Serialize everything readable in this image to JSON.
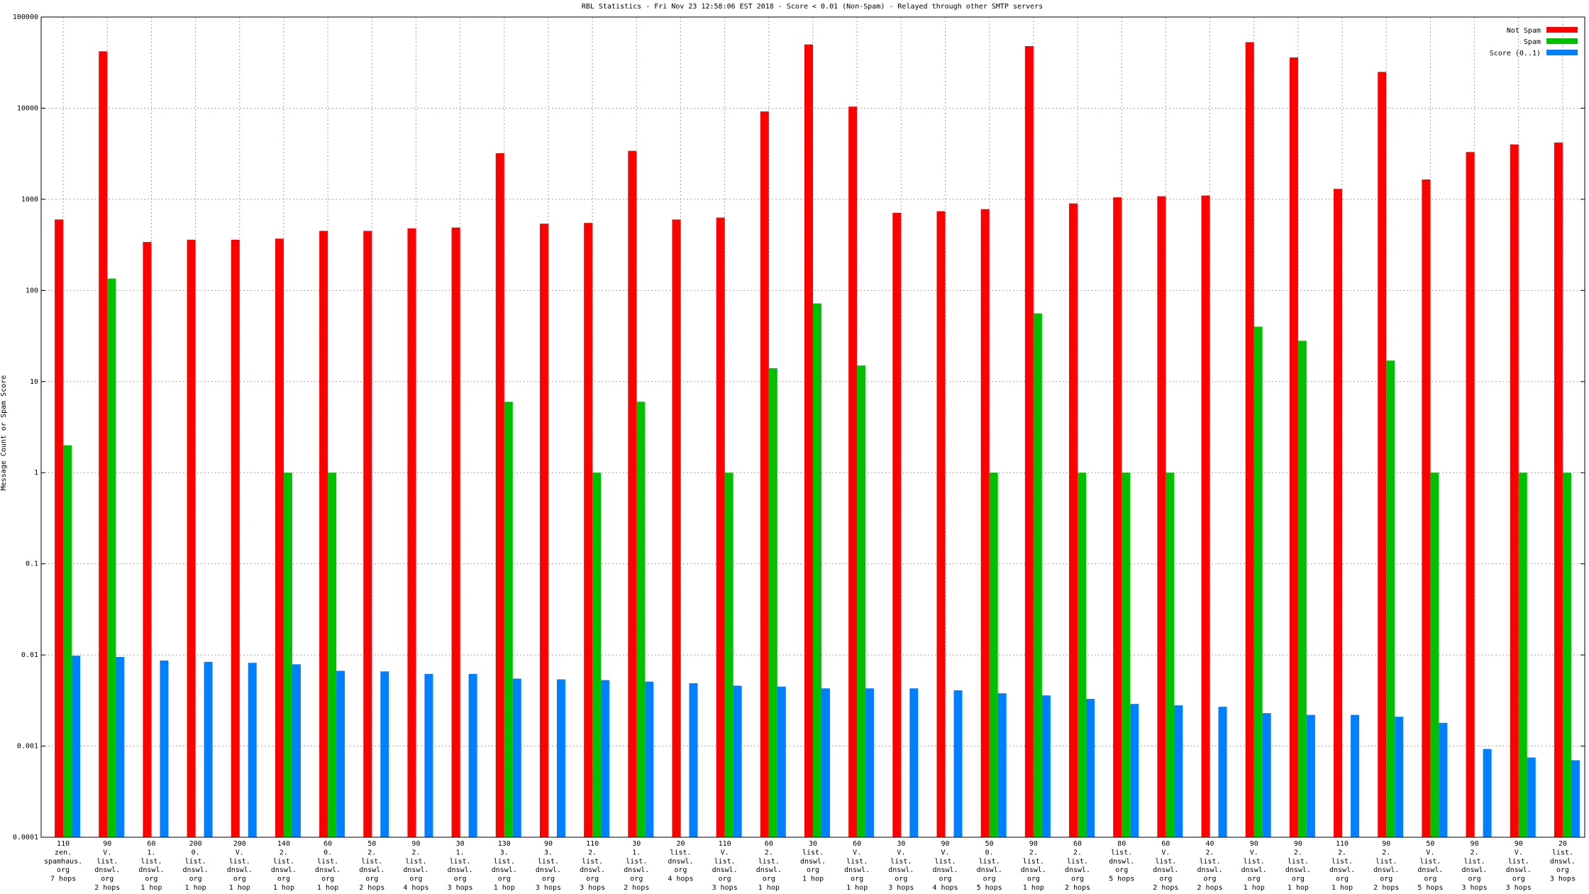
{
  "chart_data": {
    "type": "bar",
    "title": "RBL Statistics - Fri Nov 23 12:58:06 EST 2018 - Score < 0.01 (Non-Spam) - Relayed through other SMTP servers",
    "ylabel": "Message Count or Spam Score",
    "log_scale": true,
    "grid": true,
    "legend": "top-right",
    "categories": [
      [
        "110",
        "zen.",
        "spamhaus.",
        "org",
        "7 hops"
      ],
      [
        "90",
        "V.",
        "list.",
        "dnswl.",
        "org",
        "2 hops"
      ],
      [
        "60",
        "1.",
        "list.",
        "dnswl.",
        "org",
        "1 hop"
      ],
      [
        "200",
        "0.",
        "list.",
        "dnswl.",
        "org",
        "1 hop"
      ],
      [
        "200",
        "V.",
        "list.",
        "dnswl.",
        "org",
        "1 hop"
      ],
      [
        "140",
        "2.",
        "list.",
        "dnswl.",
        "org",
        "1 hop"
      ],
      [
        "60",
        "0.",
        "list.",
        "dnswl.",
        "org",
        "1 hop"
      ],
      [
        "50",
        "2.",
        "list.",
        "dnswl.",
        "org",
        "2 hops"
      ],
      [
        "90",
        "2.",
        "list.",
        "dnswl.",
        "org",
        "4 hops"
      ],
      [
        "30",
        "1.",
        "list.",
        "dnswl.",
        "org",
        "3 hops"
      ],
      [
        "130",
        "3.",
        "list.",
        "dnswl.",
        "org",
        "1 hop"
      ],
      [
        "90",
        "3.",
        "list.",
        "dnswl.",
        "org",
        "3 hops"
      ],
      [
        "110",
        "2.",
        "list.",
        "dnswl.",
        "org",
        "3 hops"
      ],
      [
        "30",
        "1.",
        "list.",
        "dnswl.",
        "org",
        "2 hops"
      ],
      [
        "20",
        "list.",
        "dnswl.",
        "org",
        "4 hops"
      ],
      [
        "110",
        "V.",
        "list.",
        "dnswl.",
        "org",
        "3 hops"
      ],
      [
        "60",
        "2.",
        "list.",
        "dnswl.",
        "org",
        "1 hop"
      ],
      [
        "30",
        "list.",
        "dnswl.",
        "org",
        "1 hop"
      ],
      [
        "60",
        "V.",
        "list.",
        "dnswl.",
        "org",
        "1 hop"
      ],
      [
        "30",
        "V.",
        "list.",
        "dnswl.",
        "org",
        "3 hops"
      ],
      [
        "90",
        "V.",
        "list.",
        "dnswl.",
        "org",
        "4 hops"
      ],
      [
        "50",
        "0.",
        "list.",
        "dnswl.",
        "org",
        "5 hops"
      ],
      [
        "90",
        "2.",
        "list.",
        "dnswl.",
        "org",
        "1 hop"
      ],
      [
        "60",
        "2.",
        "list.",
        "dnswl.",
        "org",
        "2 hops"
      ],
      [
        "80",
        "list.",
        "dnswl.",
        "org",
        "5 hops"
      ],
      [
        "60",
        "V.",
        "list.",
        "dnswl.",
        "org",
        "2 hops"
      ],
      [
        "40",
        "2.",
        "list.",
        "dnswl.",
        "org",
        "2 hops"
      ],
      [
        "90",
        "V.",
        "list.",
        "dnswl.",
        "org",
        "1 hop"
      ],
      [
        "90",
        "2.",
        "list.",
        "dnswl.",
        "org",
        "1 hop"
      ],
      [
        "110",
        "2.",
        "list.",
        "dnswl.",
        "org",
        "1 hop"
      ],
      [
        "90",
        "2.",
        "list.",
        "dnswl.",
        "org",
        "2 hops"
      ],
      [
        "50",
        "V.",
        "list.",
        "dnswl.",
        "org",
        "5 hops"
      ],
      [
        "90",
        "2.",
        "list.",
        "dnswl.",
        "org",
        "3 hops"
      ],
      [
        "90",
        "V.",
        "list.",
        "dnswl.",
        "org",
        "3 hops"
      ],
      [
        "20",
        "list.",
        "dnswl.",
        "org",
        "3 hops"
      ]
    ],
    "series": [
      {
        "name": "Not Spam",
        "color": "#ff0000",
        "values": [
          600,
          42000,
          340,
          360,
          360,
          370,
          450,
          450,
          480,
          490,
          3200,
          540,
          550,
          3400,
          600,
          630,
          9200,
          50000,
          10400,
          710,
          740,
          780,
          48000,
          900,
          1050,
          1080,
          1100,
          53000,
          36000,
          1300,
          25000,
          1650,
          3300,
          4000,
          4200
        ]
      },
      {
        "name": "Spam",
        "color": "#00c000",
        "values": [
          2,
          135,
          null,
          null,
          null,
          1,
          1,
          null,
          null,
          null,
          6,
          null,
          1,
          6,
          null,
          1,
          14,
          72,
          15,
          null,
          null,
          1,
          56,
          1,
          1,
          1,
          null,
          40,
          28,
          null,
          17,
          1,
          null,
          1,
          1
        ]
      },
      {
        "name": "Score (0..1)",
        "color": "#0080ff",
        "values": [
          0.0098,
          0.0095,
          0.0087,
          0.0084,
          0.0082,
          0.0079,
          0.0067,
          0.0066,
          0.0062,
          0.0062,
          0.0055,
          0.0054,
          0.0053,
          0.0051,
          0.0049,
          0.0046,
          0.0045,
          0.0043,
          0.0043,
          0.0043,
          0.0041,
          0.0038,
          0.0036,
          0.0033,
          0.0029,
          0.0028,
          0.0027,
          0.0023,
          0.0022,
          0.0022,
          0.0021,
          0.0018,
          0.00093,
          0.00075,
          0.0007
        ]
      }
    ],
    "ylim": [
      0.0001,
      100000
    ],
    "yticks": [
      0.0001,
      0.001,
      0.01,
      0.1,
      1,
      10,
      100,
      1000,
      10000,
      100000
    ]
  }
}
